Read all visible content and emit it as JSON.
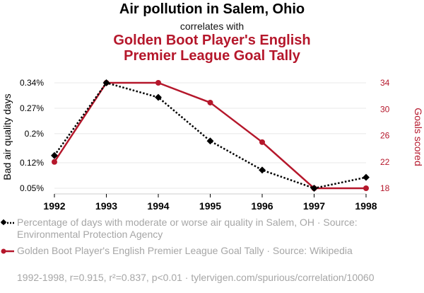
{
  "header": {
    "title": "Air pollution in Salem, Ohio",
    "subtitle": "correlates with",
    "title2_line1": "Golden Boot Player's English",
    "title2_line2": "Premier League Goal Tally"
  },
  "chart_data": {
    "type": "line",
    "x": [
      1992,
      1993,
      1994,
      1995,
      1996,
      1997,
      1998
    ],
    "series": [
      {
        "name": "Percentage of days with moderate or worse air quality in Salem, OH",
        "axis": "left",
        "color": "#000000",
        "style": "dotted",
        "marker": "diamond",
        "values": [
          0.0014,
          0.0034,
          0.003,
          0.0018,
          0.001,
          0.0005,
          0.0008
        ]
      },
      {
        "name": "Golden Boot Player's English Premier League Goal Tally",
        "axis": "right",
        "color": "#b5172b",
        "style": "solid",
        "marker": "circle",
        "values": [
          22,
          34,
          34,
          31,
          25,
          18,
          18
        ]
      }
    ],
    "left_axis": {
      "label": "Bad air quality days",
      "ylim": [
        0.0005,
        0.0034
      ],
      "ticks": [
        0.0005,
        0.0012,
        0.002,
        0.0027,
        0.0034
      ],
      "tick_labels": [
        "0.05%",
        "0.12%",
        "0.2%",
        "0.27%",
        "0.34%"
      ]
    },
    "right_axis": {
      "label": "Goals scored",
      "ylim": [
        18,
        34
      ],
      "ticks": [
        18,
        22,
        26,
        30,
        34
      ],
      "tick_labels": [
        "18",
        "22",
        "26",
        "30",
        "34"
      ],
      "color": "#b5172b"
    },
    "x_tick_labels": [
      "1992",
      "1993",
      "1994",
      "1995",
      "1996",
      "1997",
      "1998"
    ],
    "grid": true
  },
  "legend": {
    "series1_text": "Percentage of days with moderate or worse air quality in Salem, OH · Source: Environmental Protection Agency",
    "series2_text": "Golden Boot Player's English Premier League Goal Tally · Source: Wikipedia"
  },
  "footer": "1992-1998, r=0.915, r²=0.837, p<0.01 · tylervigen.com/spurious/correlation/10060"
}
